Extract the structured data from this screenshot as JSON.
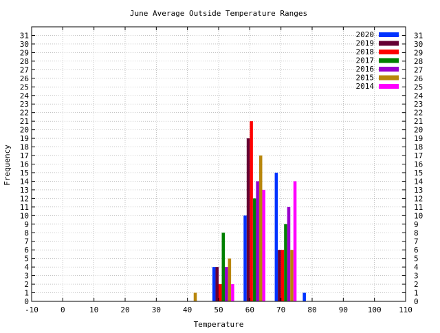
{
  "chart_data": {
    "type": "bar",
    "title": "June Average Outside Temperature Ranges",
    "xlabel": "Temperature",
    "ylabel": "Frequency",
    "xlim": [
      -10,
      110
    ],
    "ylim": [
      0,
      32
    ],
    "x_ticks": [
      -10,
      0,
      10,
      20,
      30,
      40,
      50,
      60,
      70,
      80,
      90,
      100,
      110
    ],
    "y_ticks": [
      0,
      1,
      2,
      3,
      4,
      5,
      6,
      7,
      8,
      9,
      10,
      11,
      12,
      13,
      14,
      15,
      16,
      17,
      18,
      19,
      20,
      21,
      22,
      23,
      24,
      25,
      26,
      27,
      28,
      29,
      30,
      31
    ],
    "grid": true,
    "legend_position": "top-right",
    "series": [
      {
        "name": "2020",
        "color": "#0033ff",
        "points": [
          {
            "x": 48,
            "y": 4
          },
          {
            "x": 58,
            "y": 10
          },
          {
            "x": 68,
            "y": 15
          },
          {
            "x": 77,
            "y": 1
          }
        ]
      },
      {
        "name": "2019",
        "color": "#660033",
        "points": [
          {
            "x": 49,
            "y": 4
          },
          {
            "x": 59,
            "y": 19
          },
          {
            "x": 69,
            "y": 6
          }
        ]
      },
      {
        "name": "2018",
        "color": "#ff0000",
        "points": [
          {
            "x": 50,
            "y": 2
          },
          {
            "x": 60,
            "y": 21
          },
          {
            "x": 70,
            "y": 6
          }
        ]
      },
      {
        "name": "2017",
        "color": "#008000",
        "points": [
          {
            "x": 51,
            "y": 8
          },
          {
            "x": 61,
            "y": 12
          },
          {
            "x": 71,
            "y": 9
          }
        ]
      },
      {
        "name": "2016",
        "color": "#9900cc",
        "points": [
          {
            "x": 52,
            "y": 4
          },
          {
            "x": 62,
            "y": 14
          },
          {
            "x": 72,
            "y": 11
          }
        ]
      },
      {
        "name": "2015",
        "color": "#b8860b",
        "points": [
          {
            "x": 42,
            "y": 1
          },
          {
            "x": 53,
            "y": 5
          },
          {
            "x": 63,
            "y": 17
          },
          {
            "x": 73,
            "y": 6
          }
        ]
      },
      {
        "name": "2014",
        "color": "#ff00ff",
        "points": [
          {
            "x": 54,
            "y": 2
          },
          {
            "x": 64,
            "y": 13
          },
          {
            "x": 74,
            "y": 14
          }
        ]
      }
    ]
  }
}
